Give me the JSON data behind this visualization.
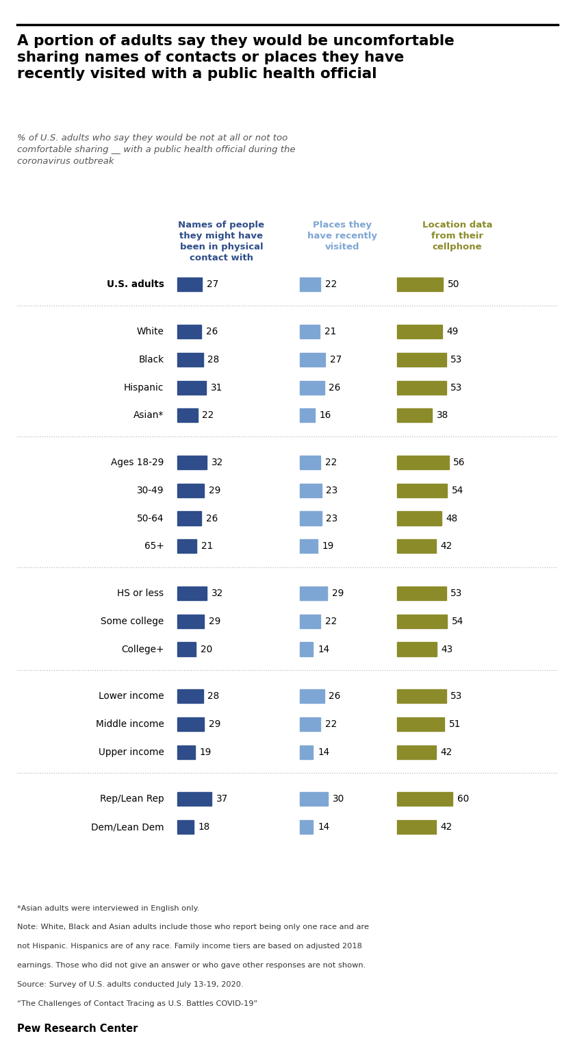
{
  "title": "A portion of adults say they would be uncomfortable\nsharing names of contacts or places they have\nrecently visited with a public health official",
  "col_headers": [
    "Names of people\nthey might have\nbeen in physical\ncontact with",
    "Places they\nhave recently\nvisited",
    "Location data\nfrom their\ncellphone"
  ],
  "col_colors": [
    "#2E4D8A",
    "#7EA6D4",
    "#8B8B2A"
  ],
  "rows": [
    {
      "label": "U.S. adults",
      "values": [
        27,
        22,
        50
      ],
      "group": 0,
      "bold": true
    },
    {
      "label": "White",
      "values": [
        26,
        21,
        49
      ],
      "group": 1,
      "bold": false
    },
    {
      "label": "Black",
      "values": [
        28,
        27,
        53
      ],
      "group": 1,
      "bold": false
    },
    {
      "label": "Hispanic",
      "values": [
        31,
        26,
        53
      ],
      "group": 1,
      "bold": false
    },
    {
      "label": "Asian*",
      "values": [
        22,
        16,
        38
      ],
      "group": 1,
      "bold": false
    },
    {
      "label": "Ages 18-29",
      "values": [
        32,
        22,
        56
      ],
      "group": 2,
      "bold": false
    },
    {
      "label": "30-49",
      "values": [
        29,
        23,
        54
      ],
      "group": 2,
      "bold": false
    },
    {
      "label": "50-64",
      "values": [
        26,
        23,
        48
      ],
      "group": 2,
      "bold": false
    },
    {
      "label": "65+",
      "values": [
        21,
        19,
        42
      ],
      "group": 2,
      "bold": false
    },
    {
      "label": "HS or less",
      "values": [
        32,
        29,
        53
      ],
      "group": 3,
      "bold": false
    },
    {
      "label": "Some college",
      "values": [
        29,
        22,
        54
      ],
      "group": 3,
      "bold": false
    },
    {
      "label": "College+",
      "values": [
        20,
        14,
        43
      ],
      "group": 3,
      "bold": false
    },
    {
      "label": "Lower income",
      "values": [
        28,
        26,
        53
      ],
      "group": 4,
      "bold": false
    },
    {
      "label": "Middle income",
      "values": [
        29,
        22,
        51
      ],
      "group": 4,
      "bold": false
    },
    {
      "label": "Upper income",
      "values": [
        19,
        14,
        42
      ],
      "group": 4,
      "bold": false
    },
    {
      "label": "Rep/Lean Rep",
      "values": [
        37,
        30,
        60
      ],
      "group": 5,
      "bold": false
    },
    {
      "label": "Dem/Lean Dem",
      "values": [
        18,
        14,
        42
      ],
      "group": 5,
      "bold": false
    }
  ],
  "footnotes": [
    "*Asian adults were interviewed in English only.",
    "Note: White, Black and Asian adults include those who report being only one race and are",
    "not Hispanic. Hispanics are of any race. Family income tiers are based on adjusted 2018",
    "earnings. Those who did not give an answer or who gave other responses are not shown.",
    "Source: Survey of U.S. adults conducted July 13-19, 2020.",
    "“The Challenges of Contact Tracing as U.S. Battles COVID-19”"
  ],
  "source_label": "Pew Research Center",
  "bg_color": "#FFFFFF",
  "sep_after_groups": [
    0,
    1,
    2,
    3,
    4
  ]
}
